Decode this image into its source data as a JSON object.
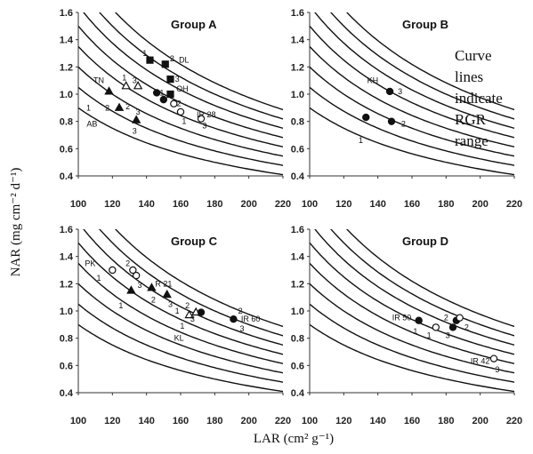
{
  "figure": {
    "ylabel_html": "NAR (mg cm⁻² d⁻¹)",
    "xlabel": "LAR (cm² g⁻¹)",
    "note_lines": [
      "Curve",
      "lines",
      "indicate",
      "RGR",
      "range"
    ]
  },
  "chart_data": [
    {
      "type": "scatter",
      "title": "Group A",
      "xlim": [
        100,
        220
      ],
      "ylim": [
        0.4,
        1.6
      ],
      "xticks": [
        100,
        120,
        140,
        160,
        180,
        200,
        220
      ],
      "yticks": [
        0.4,
        0.6,
        0.8,
        1.0,
        1.2,
        1.4,
        1.6
      ],
      "rgr_curve_constants": [
        90,
        105,
        120,
        135,
        150,
        165,
        180,
        195
      ],
      "series": [
        {
          "name": "DL",
          "marker": "square-filled",
          "points": [
            {
              "x": 142,
              "y": 1.25,
              "label": "1"
            },
            {
              "x": 151,
              "y": 1.22,
              "label": "2"
            },
            {
              "x": 154,
              "y": 1.11,
              "label": "3"
            }
          ]
        },
        {
          "name": "TN",
          "marker": "triangle-filled",
          "points": [
            {
              "x": 118,
              "y": 1.02,
              "label": ""
            }
          ]
        },
        {
          "name": "TN",
          "marker": "triangle-open",
          "points": [
            {
              "x": 128,
              "y": 1.06,
              "label": "1"
            },
            {
              "x": 135,
              "y": 1.06,
              "label": "3"
            }
          ]
        },
        {
          "name": "OH",
          "marker": "square-filled",
          "points": [
            {
              "x": 154,
              "y": 1.0,
              "label": "3"
            }
          ]
        },
        {
          "name": "OH",
          "marker": "circle-filled",
          "points": [
            {
              "x": 146,
              "y": 1.01,
              "label": ""
            },
            {
              "x": 150,
              "y": 0.96,
              "label": ""
            }
          ]
        },
        {
          "name": "AB",
          "marker": "triangle-filled",
          "points": [
            {
              "x": 124,
              "y": 0.9,
              "label": "2"
            },
            {
              "x": 134,
              "y": 0.81,
              "label": ""
            }
          ]
        },
        {
          "name": "IR 28",
          "marker": "circle-open",
          "points": [
            {
              "x": 156,
              "y": 0.93,
              "label": "2"
            },
            {
              "x": 160,
              "y": 0.87,
              "label": ""
            },
            {
              "x": 172,
              "y": 0.82,
              "label": ""
            }
          ]
        }
      ],
      "labels": [
        {
          "text": "1",
          "x": 139,
          "y": 1.3
        },
        {
          "text": "2",
          "x": 155,
          "y": 1.26
        },
        {
          "text": "DL",
          "x": 162,
          "y": 1.25
        },
        {
          "text": "3",
          "x": 158,
          "y": 1.11
        },
        {
          "text": "TN",
          "x": 112,
          "y": 1.1
        },
        {
          "text": "1",
          "x": 127,
          "y": 1.12
        },
        {
          "text": "3",
          "x": 133,
          "y": 1.1
        },
        {
          "text": "1",
          "x": 149,
          "y": 1.01
        },
        {
          "text": "OH",
          "x": 161,
          "y": 1.04
        },
        {
          "text": "1",
          "x": 106,
          "y": 0.9
        },
        {
          "text": "2",
          "x": 117,
          "y": 0.9
        },
        {
          "text": "2",
          "x": 129,
          "y": 0.91
        },
        {
          "text": "3",
          "x": 135,
          "y": 0.87
        },
        {
          "text": "2",
          "x": 159,
          "y": 0.93
        },
        {
          "text": "IR 28",
          "x": 175,
          "y": 0.85
        },
        {
          "text": "1",
          "x": 162,
          "y": 0.8
        },
        {
          "text": "3",
          "x": 174,
          "y": 0.77
        },
        {
          "text": "AB",
          "x": 108,
          "y": 0.78
        },
        {
          "text": "3",
          "x": 133,
          "y": 0.73
        }
      ]
    },
    {
      "type": "scatter",
      "title": "Group B",
      "xlim": [
        100,
        220
      ],
      "ylim": [
        0.4,
        1.6
      ],
      "xticks": [
        100,
        120,
        140,
        160,
        180,
        200,
        220
      ],
      "yticks": [
        0.4,
        0.6,
        0.8,
        1.0,
        1.2,
        1.4,
        1.6
      ],
      "rgr_curve_constants": [
        90,
        105,
        120,
        135,
        150,
        165,
        180,
        195
      ],
      "series": [
        {
          "name": "KH",
          "marker": "circle-filled",
          "points": [
            {
              "x": 133,
              "y": 0.83,
              "label": "1"
            },
            {
              "x": 148,
              "y": 0.8,
              "label": "2"
            },
            {
              "x": 147,
              "y": 1.02,
              "label": "3"
            }
          ]
        }
      ],
      "labels": [
        {
          "text": "KH",
          "x": 137,
          "y": 1.1
        },
        {
          "text": "3",
          "x": 153,
          "y": 1.02
        },
        {
          "text": "2",
          "x": 155,
          "y": 0.78
        },
        {
          "text": "1",
          "x": 130,
          "y": 0.66
        }
      ]
    },
    {
      "type": "scatter",
      "title": "Group C",
      "xlim": [
        100,
        220
      ],
      "ylim": [
        0.4,
        1.6
      ],
      "xticks": [
        100,
        120,
        140,
        160,
        180,
        200,
        220
      ],
      "yticks": [
        0.4,
        0.6,
        0.8,
        1.0,
        1.2,
        1.4,
        1.6
      ],
      "rgr_curve_constants": [
        90,
        105,
        120,
        135,
        150,
        165,
        180,
        195
      ],
      "series": [
        {
          "name": "PK",
          "marker": "circle-open",
          "points": [
            {
              "x": 120,
              "y": 1.3,
              "label": ""
            },
            {
              "x": 132,
              "y": 1.3,
              "label": ""
            },
            {
              "x": 134,
              "y": 1.26,
              "label": ""
            }
          ]
        },
        {
          "name": "R 21",
          "marker": "triangle-filled",
          "points": [
            {
              "x": 131,
              "y": 1.15,
              "label": ""
            },
            {
              "x": 143,
              "y": 1.17,
              "label": ""
            },
            {
              "x": 152,
              "y": 1.12,
              "label": ""
            }
          ]
        },
        {
          "name": "KL",
          "marker": "triangle-open",
          "points": [
            {
              "x": 165,
              "y": 0.97,
              "label": ""
            },
            {
              "x": 169,
              "y": 0.99,
              "label": ""
            }
          ]
        },
        {
          "name": "KL",
          "marker": "circle-filled",
          "points": [
            {
              "x": 172,
              "y": 0.99,
              "label": ""
            }
          ]
        },
        {
          "name": "IR 60",
          "marker": "circle-filled",
          "points": [
            {
              "x": 191,
              "y": 0.94,
              "label": ""
            }
          ]
        }
      ],
      "labels": [
        {
          "text": "PK",
          "x": 107,
          "y": 1.35
        },
        {
          "text": "1",
          "x": 112,
          "y": 1.24
        },
        {
          "text": "2",
          "x": 129,
          "y": 1.35
        },
        {
          "text": "3",
          "x": 136,
          "y": 1.19
        },
        {
          "text": "R 21",
          "x": 150,
          "y": 1.2
        },
        {
          "text": "1",
          "x": 125,
          "y": 1.04
        },
        {
          "text": "2",
          "x": 144,
          "y": 1.08
        },
        {
          "text": "3",
          "x": 154,
          "y": 1.05
        },
        {
          "text": "2",
          "x": 164,
          "y": 1.04
        },
        {
          "text": "1",
          "x": 158,
          "y": 1.0
        },
        {
          "text": "3",
          "x": 167,
          "y": 0.94
        },
        {
          "text": "1",
          "x": 161,
          "y": 0.89
        },
        {
          "text": "KL",
          "x": 159,
          "y": 0.8
        },
        {
          "text": "2",
          "x": 195,
          "y": 1.0
        },
        {
          "text": "IR 60",
          "x": 201,
          "y": 0.94
        },
        {
          "text": "3",
          "x": 196,
          "y": 0.87
        }
      ]
    },
    {
      "type": "scatter",
      "title": "Group D",
      "xlim": [
        100,
        220
      ],
      "ylim": [
        0.4,
        1.6
      ],
      "xticks": [
        100,
        120,
        140,
        160,
        180,
        200,
        220
      ],
      "yticks": [
        0.4,
        0.6,
        0.8,
        1.0,
        1.2,
        1.4,
        1.6
      ],
      "rgr_curve_constants": [
        90,
        105,
        120,
        135,
        150,
        165,
        180,
        195
      ],
      "series": [
        {
          "name": "IR 50",
          "marker": "circle-filled",
          "points": [
            {
              "x": 164,
              "y": 0.93,
              "label": ""
            },
            {
              "x": 184,
              "y": 0.88,
              "label": ""
            },
            {
              "x": 186,
              "y": 0.93,
              "label": ""
            }
          ]
        },
        {
          "name": "IR 42",
          "marker": "circle-open",
          "points": [
            {
              "x": 174,
              "y": 0.88,
              "label": ""
            },
            {
              "x": 188,
              "y": 0.95,
              "label": ""
            },
            {
              "x": 208,
              "y": 0.65,
              "label": ""
            }
          ]
        }
      ],
      "labels": [
        {
          "text": "IR 50",
          "x": 154,
          "y": 0.95
        },
        {
          "text": "2",
          "x": 180,
          "y": 0.95
        },
        {
          "text": "2",
          "x": 192,
          "y": 0.88
        },
        {
          "text": "1",
          "x": 162,
          "y": 0.85
        },
        {
          "text": "1",
          "x": 170,
          "y": 0.82
        },
        {
          "text": "3",
          "x": 181,
          "y": 0.82
        },
        {
          "text": "IR 42",
          "x": 200,
          "y": 0.63
        },
        {
          "text": "3",
          "x": 210,
          "y": 0.57
        }
      ]
    }
  ]
}
